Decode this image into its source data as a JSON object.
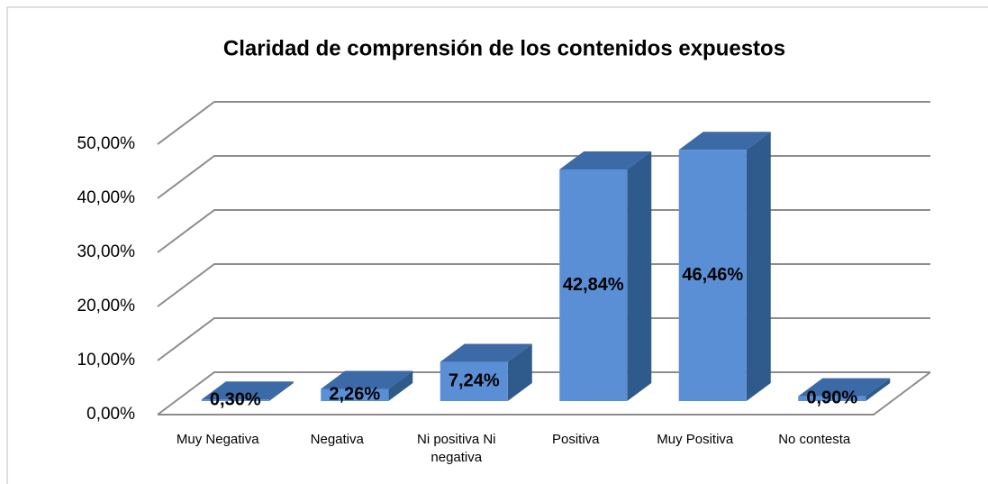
{
  "chart_data": {
    "type": "bar3d",
    "title": "Claridad de comprensión de los contenidos expuestos",
    "categories": [
      "Muy Negativa",
      "Negativa",
      "Ni positiva Ni negativa",
      "Positiva",
      "Muy Positiva",
      "No contesta"
    ],
    "values": [
      0.3,
      2.26,
      7.24,
      42.84,
      46.46,
      0.9
    ],
    "value_labels": [
      "0,30%",
      "2,26%",
      "7,24%",
      "42,84%",
      "46,46%",
      "0,90%"
    ],
    "color": "#5a8fd6",
    "ylim": [
      0,
      50
    ],
    "yticks": [
      {
        "value": 0,
        "label": "0,00%"
      },
      {
        "value": 10,
        "label": "10,00%"
      },
      {
        "value": 20,
        "label": "20,00%"
      },
      {
        "value": 30,
        "label": "30,00%"
      },
      {
        "value": 40,
        "label": "40,00%"
      },
      {
        "value": 50,
        "label": "50,00%"
      }
    ],
    "grid": true
  }
}
